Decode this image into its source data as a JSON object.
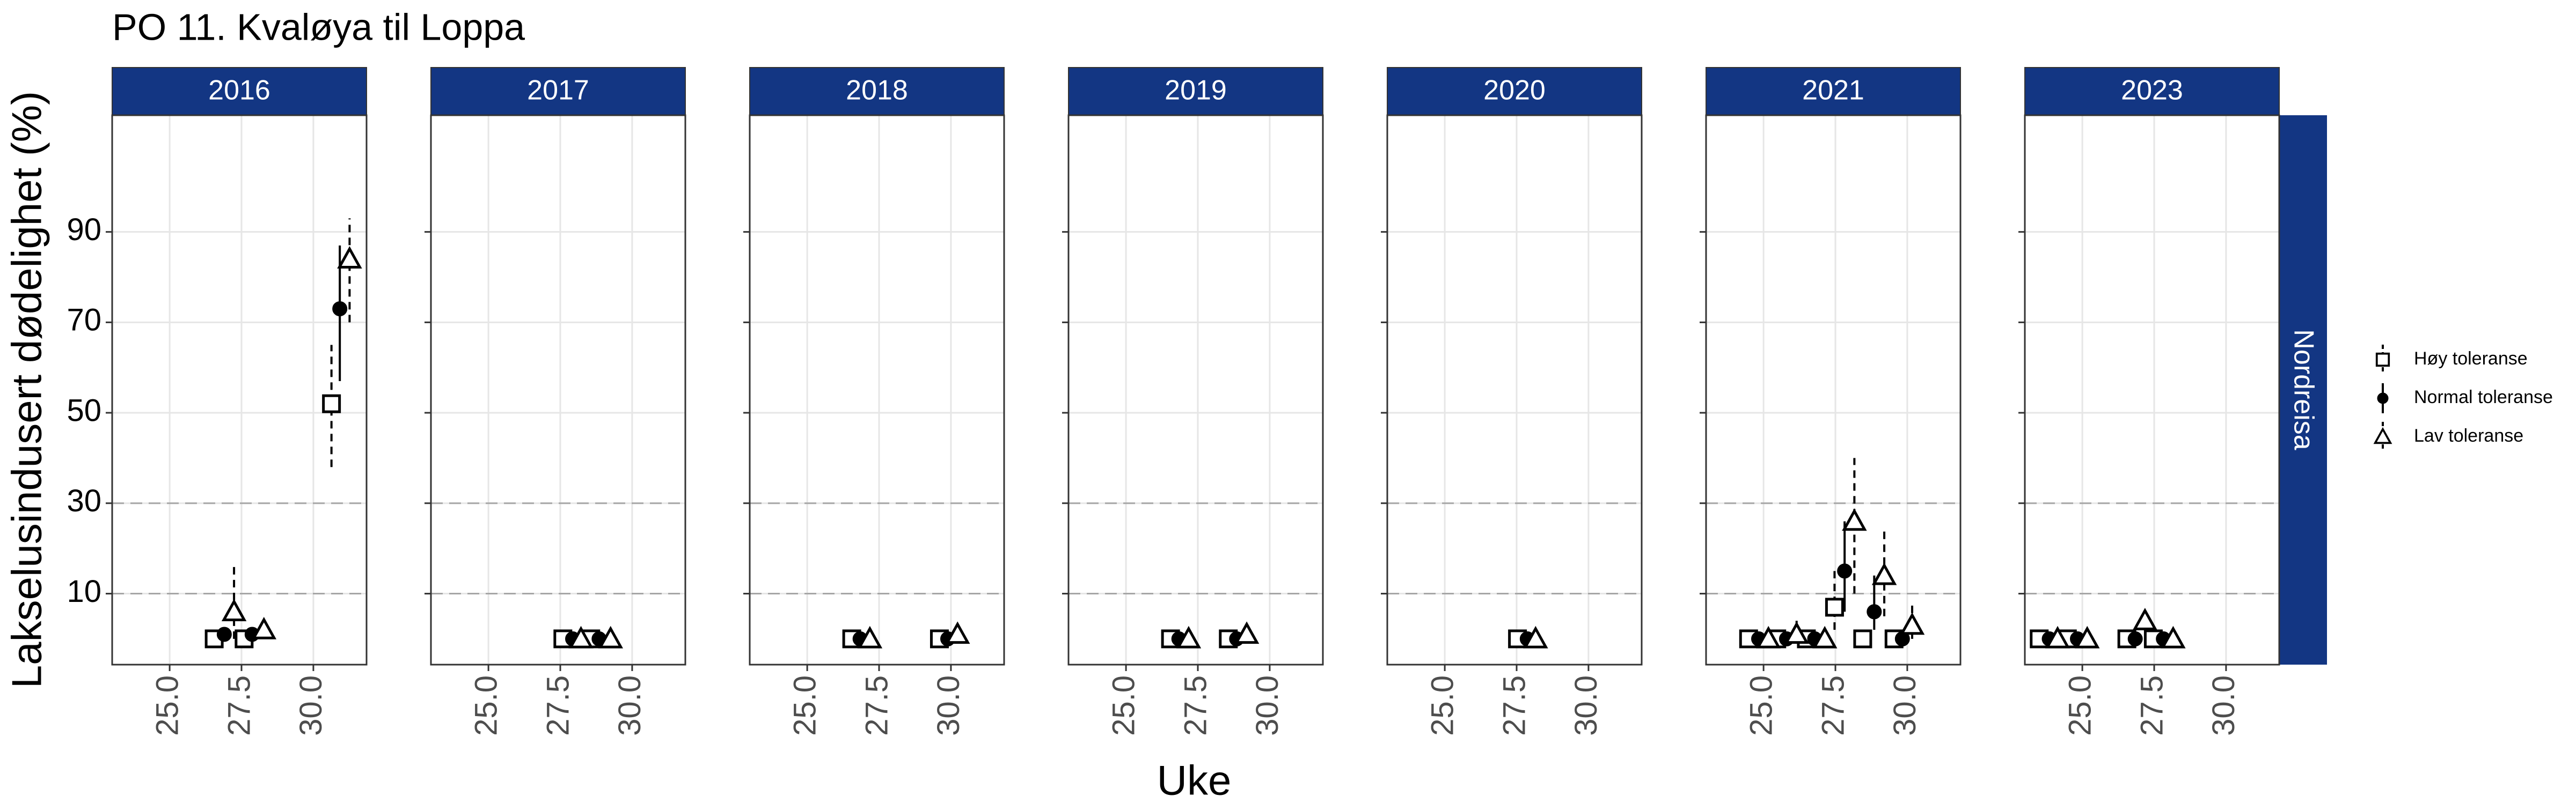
{
  "chart_data": {
    "type": "scatter",
    "title": "PO 11. Kvaløya til Loppa",
    "x_label": "Uke",
    "y_label": "Lakselusindusert dødelighet (%)",
    "facet_label": "Nordreisa",
    "xlim": [
      23.0,
      31.85
    ],
    "ylim": [
      -5.7,
      115.8
    ],
    "xticks": [
      {
        "value": 25,
        "label": "25.0"
      },
      {
        "value": 27.5,
        "label": "27.5"
      },
      {
        "value": 30,
        "label": "30.0"
      }
    ],
    "yticks": [
      10,
      30,
      50,
      70,
      90
    ],
    "hlines": [
      10,
      30
    ],
    "grid": true,
    "legend_position": "right",
    "series": [
      {
        "name": "Høy toleranse",
        "color": "#000000",
        "marker": "square",
        "linetype": "dashed"
      },
      {
        "name": "Normal toleranse",
        "color": "#000000",
        "marker": "circle",
        "linetype": "solid"
      },
      {
        "name": "Lav toleranse",
        "color": "#000000",
        "marker": "triangle",
        "linetype": "dashed"
      }
    ],
    "panels": [
      {
        "title": "2016",
        "series": [
          {
            "x": [
              26.55,
              27.59,
              30.63
            ],
            "values": [
              0,
              0,
              52
            ],
            "low": [
              null,
              null,
              38
            ],
            "high": [
              null,
              null,
              65
            ]
          },
          {
            "x": [
              26.9,
              27.87,
              30.92
            ],
            "values": [
              1,
              1,
              73
            ],
            "low": [
              null,
              null,
              57
            ],
            "high": [
              null,
              null,
              87
            ]
          },
          {
            "x": [
              27.24,
              28.28,
              31.26
            ],
            "values": [
              6,
              2,
              84
            ],
            "low": [
              0,
              null,
              70
            ],
            "high": [
              17,
              null,
              93
            ]
          }
        ]
      },
      {
        "title": "2017",
        "series": [
          {
            "x": [
              27.59,
              28.56
            ],
            "values": [
              0,
              0
            ],
            "low": [
              null,
              null
            ],
            "high": [
              null,
              null
            ]
          },
          {
            "x": [
              27.93,
              28.85
            ],
            "values": [
              0,
              0
            ],
            "low": [
              null,
              null
            ],
            "high": [
              null,
              null
            ]
          },
          {
            "x": [
              28.22,
              29.25
            ],
            "values": [
              0,
              0
            ],
            "low": [
              null,
              null
            ],
            "high": [
              null,
              null
            ]
          }
        ]
      },
      {
        "title": "2018",
        "series": [
          {
            "x": [
              26.55,
              29.6
            ],
            "values": [
              0,
              0
            ],
            "low": [
              null,
              null
            ],
            "high": [
              null,
              null
            ]
          },
          {
            "x": [
              26.84,
              29.89
            ],
            "values": [
              0,
              0
            ],
            "low": [
              null,
              null
            ],
            "high": [
              null,
              null
            ]
          },
          {
            "x": [
              27.18,
              30.23
            ],
            "values": [
              0,
              1
            ],
            "low": [
              null,
              null
            ],
            "high": [
              null,
              null
            ]
          }
        ]
      },
      {
        "title": "2019",
        "series": [
          {
            "x": [
              26.55,
              28.56
            ],
            "values": [
              0,
              0
            ],
            "low": [
              null,
              null
            ],
            "high": [
              null,
              null
            ]
          },
          {
            "x": [
              26.84,
              28.85
            ],
            "values": [
              0,
              0
            ],
            "low": [
              null,
              null
            ],
            "high": [
              null,
              null
            ]
          },
          {
            "x": [
              27.18,
              29.2
            ],
            "values": [
              0,
              1
            ],
            "low": [
              null,
              null
            ],
            "high": [
              null,
              null
            ]
          }
        ]
      },
      {
        "title": "2020",
        "series": [
          {
            "x": [
              27.53
            ],
            "values": [
              0
            ],
            "low": [
              null
            ],
            "high": [
              null
            ]
          },
          {
            "x": [
              27.87
            ],
            "values": [
              0
            ],
            "low": [
              null
            ],
            "high": [
              null
            ]
          },
          {
            "x": [
              28.16
            ],
            "values": [
              0
            ],
            "low": [
              null
            ],
            "high": [
              null
            ]
          }
        ]
      },
      {
        "title": "2021",
        "series": [
          {
            "x": [
              24.48,
              25.46,
              26.49,
              27.47,
              28.45,
              29.54
            ],
            "values": [
              0,
              0,
              0,
              7,
              0,
              0
            ],
            "low": [
              null,
              null,
              null,
              2,
              null,
              null
            ],
            "high": [
              null,
              null,
              null,
              15,
              null,
              null
            ]
          },
          {
            "x": [
              24.83,
              25.8,
              26.78,
              27.82,
              28.85,
              29.83
            ],
            "values": [
              0,
              0,
              0,
              15,
              6,
              0
            ],
            "low": [
              null,
              null,
              null,
              6,
              2,
              null
            ],
            "high": [
              null,
              null,
              null,
              26,
              14,
              null
            ]
          },
          {
            "x": [
              25.17,
              26.15,
              27.13,
              28.16,
              29.2,
              30.17
            ],
            "values": [
              0,
              1,
              0,
              26,
              14,
              3
            ],
            "low": [
              null,
              0,
              null,
              10,
              5,
              0
            ],
            "high": [
              null,
              4,
              null,
              40,
              24,
              8
            ]
          }
        ]
      },
      {
        "title": "2023",
        "series": [
          {
            "x": [
              23.5,
              24.48,
              26.55,
              27.47
            ],
            "values": [
              0,
              0,
              0,
              0
            ],
            "low": [
              null,
              null,
              null,
              null
            ],
            "high": [
              null,
              null,
              null,
              null
            ]
          },
          {
            "x": [
              23.85,
              24.83,
              26.84,
              27.82
            ],
            "values": [
              0,
              0,
              0,
              0
            ],
            "low": [
              null,
              null,
              null,
              null
            ],
            "high": [
              null,
              null,
              null,
              null
            ]
          },
          {
            "x": [
              24.14,
              25.17,
              27.18,
              28.16
            ],
            "values": [
              0,
              0,
              4,
              0
            ],
            "low": [
              null,
              null,
              null,
              null
            ],
            "high": [
              null,
              null,
              null,
              null
            ]
          }
        ]
      }
    ]
  }
}
